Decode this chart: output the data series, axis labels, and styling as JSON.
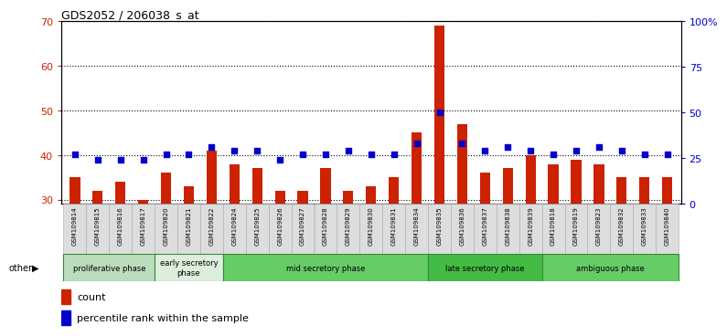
{
  "title": "GDS2052 / 206038_s_at",
  "samples": [
    "GSM109814",
    "GSM109815",
    "GSM109816",
    "GSM109817",
    "GSM109820",
    "GSM109821",
    "GSM109822",
    "GSM109824",
    "GSM109825",
    "GSM109826",
    "GSM109827",
    "GSM109828",
    "GSM109829",
    "GSM109830",
    "GSM109831",
    "GSM109834",
    "GSM109835",
    "GSM109836",
    "GSM109837",
    "GSM109838",
    "GSM109839",
    "GSM109818",
    "GSM109819",
    "GSM109823",
    "GSM109832",
    "GSM109833",
    "GSM109840"
  ],
  "counts": [
    35,
    32,
    34,
    30,
    36,
    33,
    41,
    38,
    37,
    32,
    32,
    37,
    32,
    33,
    35,
    45,
    69,
    47,
    36,
    37,
    40,
    38,
    39,
    38,
    35,
    35,
    35
  ],
  "percentiles": [
    27,
    24,
    24,
    24,
    27,
    27,
    31,
    29,
    29,
    24,
    27,
    27,
    29,
    27,
    27,
    33,
    50,
    33,
    29,
    31,
    29,
    27,
    29,
    31,
    29,
    27,
    27
  ],
  "phases": [
    {
      "name": "proliferative phase",
      "start": 0,
      "end": 4,
      "color": "#bbddbb"
    },
    {
      "name": "early secretory\nphase",
      "start": 4,
      "end": 7,
      "color": "#ddeedd"
    },
    {
      "name": "mid secretory phase",
      "start": 7,
      "end": 16,
      "color": "#66cc66"
    },
    {
      "name": "late secretory phase",
      "start": 16,
      "end": 21,
      "color": "#44bb44"
    },
    {
      "name": "ambiguous phase",
      "start": 21,
      "end": 27,
      "color": "#66cc66"
    }
  ],
  "ylim_left": [
    29,
    70
  ],
  "ylim_right": [
    0,
    100
  ],
  "bar_color": "#cc2200",
  "dot_color": "#0000cc",
  "sample_box_color": "#cccccc",
  "sample_box_border": "#aaaaaa",
  "plot_bg": "#ffffff",
  "fig_bg": "#ffffff",
  "grid_color": "#000000",
  "tick_color_left": "#cc2200",
  "tick_color_right": "#0000cc",
  "left_ticks": [
    30,
    40,
    50,
    60,
    70
  ],
  "right_ticks": [
    0,
    25,
    50,
    75,
    100
  ],
  "right_tick_labels": [
    "0",
    "25",
    "50",
    "75",
    "100%"
  ]
}
